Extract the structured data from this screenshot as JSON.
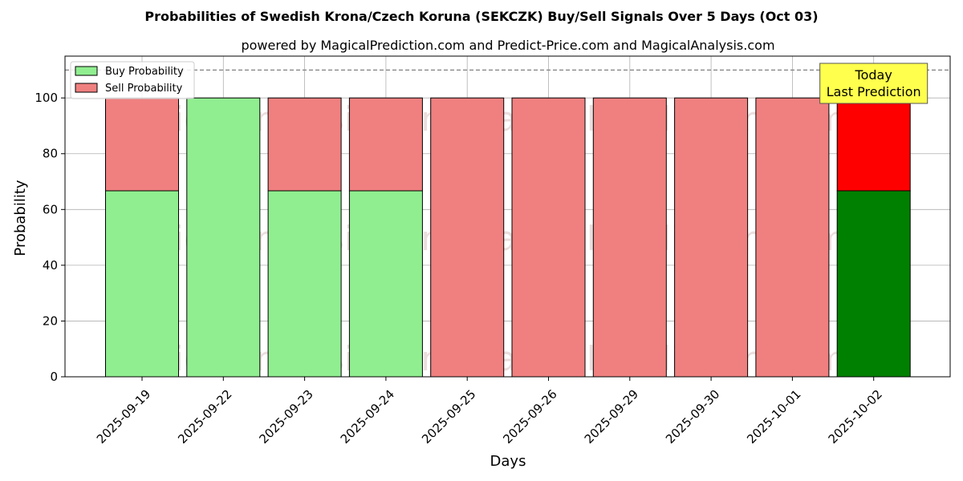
{
  "chart_data": {
    "type": "bar",
    "stacked": true,
    "title": "Probabilities of Swedish Krona/Czech Koruna (SEKCZK) Buy/Sell Signals Over 5 Days (Oct 03)",
    "subtitle": "powered by MagicalPrediction.com and Predict-Price.com and MagicalAnalysis.com",
    "xlabel": "Days",
    "ylabel": "Probability",
    "ylim": [
      0,
      115
    ],
    "yticks": [
      0,
      20,
      40,
      60,
      80,
      100
    ],
    "grid": true,
    "legend_position": "top-left",
    "reference_line": 110,
    "categories": [
      "2025-09-19",
      "2025-09-22",
      "2025-09-23",
      "2025-09-24",
      "2025-09-25",
      "2025-09-26",
      "2025-09-29",
      "2025-09-30",
      "2025-10-01",
      "2025-10-02"
    ],
    "series": [
      {
        "name": "Buy Probability",
        "color": "#90ee90",
        "values": [
          66.7,
          100,
          66.7,
          66.7,
          0,
          0,
          0,
          0,
          0,
          66.7
        ]
      },
      {
        "name": "Sell Probability",
        "color": "#f08080",
        "values": [
          33.3,
          0,
          33.3,
          33.3,
          100,
          100,
          100,
          100,
          100,
          33.3
        ]
      }
    ],
    "highlight": {
      "index": 9,
      "buy_color": "#008000",
      "sell_color": "#ff0000"
    },
    "annotation": {
      "line1": "Today",
      "line2": "Last Prediction",
      "color": "#ffff4d"
    },
    "watermarks": [
      "MagicalAnalysis.com",
      "MagicalPrediction.com"
    ]
  }
}
